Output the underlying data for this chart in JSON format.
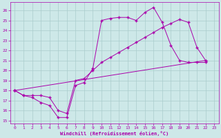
{
  "xlabel": "Windchill (Refroidissement éolien,°C)",
  "bg_color": "#cde8e8",
  "grid_color": "#aacccc",
  "line_color": "#aa00aa",
  "xlim": [
    -0.5,
    23.5
  ],
  "ylim": [
    14.7,
    26.8
  ],
  "yticks": [
    15,
    16,
    17,
    18,
    19,
    20,
    21,
    22,
    23,
    24,
    25,
    26
  ],
  "xticks": [
    0,
    1,
    2,
    3,
    4,
    5,
    6,
    7,
    8,
    9,
    10,
    11,
    12,
    13,
    14,
    15,
    16,
    17,
    18,
    19,
    20,
    21,
    22,
    23
  ],
  "line1_x": [
    0,
    1,
    2,
    3,
    4,
    5,
    6,
    7,
    8,
    9,
    10,
    11,
    12,
    13,
    14,
    15,
    16,
    17,
    18,
    19,
    20,
    21,
    22
  ],
  "line1_y": [
    18,
    17.5,
    17.3,
    16.8,
    16.5,
    15.3,
    15.3,
    18.5,
    18.8,
    20.2,
    25.0,
    25.2,
    25.3,
    25.3,
    25.0,
    25.8,
    26.3,
    24.8,
    22.5,
    21.0,
    20.8,
    20.8,
    20.8
  ],
  "line2_x": [
    0,
    1,
    2,
    3,
    4,
    5,
    6,
    7,
    8,
    9,
    10,
    11,
    12,
    13,
    14,
    15,
    16,
    17,
    18,
    19,
    20,
    21,
    22
  ],
  "line2_y": [
    18,
    17.5,
    17.5,
    17.5,
    17.3,
    16.0,
    15.7,
    19.0,
    19.2,
    20.0,
    20.8,
    21.3,
    21.8,
    22.3,
    22.8,
    23.3,
    23.8,
    24.3,
    24.7,
    25.1,
    24.8,
    22.3,
    21.0
  ],
  "line3_x": [
    0,
    22
  ],
  "line3_y": [
    18,
    21.0
  ],
  "marker": "+",
  "markersize": 3,
  "linewidth": 0.7,
  "tick_labelsize": 4.5,
  "xlabel_fontsize": 5
}
